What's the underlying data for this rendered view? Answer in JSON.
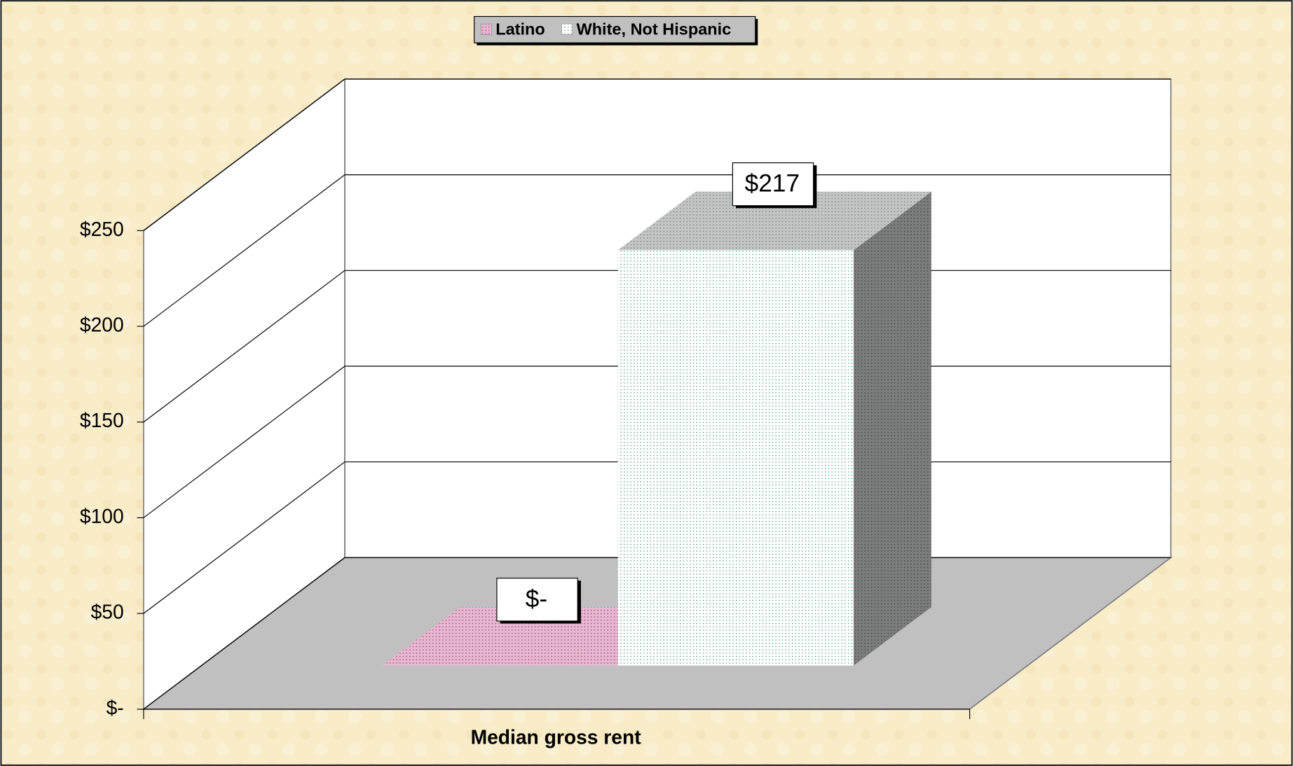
{
  "chart_data": {
    "type": "bar3d",
    "categories": [
      "Median gross rent"
    ],
    "series": [
      {
        "name": "Latino",
        "color": "#e8b8d0",
        "values": [
          0
        ],
        "value_labels": [
          "$-"
        ]
      },
      {
        "name": "White, Not Hispanic",
        "color": "#ffffff",
        "values": [
          217
        ],
        "value_labels": [
          "$217"
        ]
      }
    ],
    "ylim": [
      0,
      250
    ],
    "yticks": [
      {
        "value": 0,
        "label": "$-"
      },
      {
        "value": 50,
        "label": "$50"
      },
      {
        "value": 100,
        "label": "$100"
      },
      {
        "value": 150,
        "label": "$150"
      },
      {
        "value": 200,
        "label": "$200"
      },
      {
        "value": 250,
        "label": "$250"
      }
    ],
    "grid": true,
    "legend": "top"
  }
}
